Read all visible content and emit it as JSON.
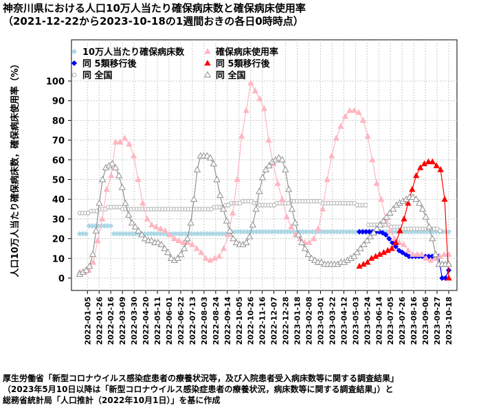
{
  "header": {
    "title": "神奈川県における人口10万人当たり確保病床数と確保病床使用率",
    "subtitle": "（2021-12-22から2023-10-18の1週間おきの各日0時時点）"
  },
  "source": {
    "line1": "厚生労働省「新型コロナウイルス感染症患者の療養状況等，及び入院患者受入病床数等に関する調査結果」",
    "line2": "（2023年5月10日以降は「新型コロナウイルス感染症患者の療養状況，病床数等に関する調査結果」）と",
    "line3": "総務省統計局「人口推計（2022年10月1日）」を基に作成"
  },
  "chart_data": {
    "type": "scatter",
    "ylabel": "人口10万人当たり確保病床数，確保病床使用率（%）",
    "xlabel": "",
    "ylim": [
      0,
      100
    ],
    "yticks": [
      0,
      10,
      20,
      30,
      40,
      50,
      60,
      70,
      80,
      90,
      100
    ],
    "x_tick_labels": [
      "2022-01-05",
      "2022-01-26",
      "2022-02-16",
      "2022-03-09",
      "2022-03-30",
      "2022-04-20",
      "2022-05-11",
      "2022-06-01",
      "2022-06-22",
      "2022-07-13",
      "2022-08-03",
      "2022-08-24",
      "2022-09-14",
      "2022-10-05",
      "2022-10-26",
      "2022-11-16",
      "2022-12-07",
      "2022-12-28",
      "2023-01-18",
      "2023-02-08",
      "2023-03-01",
      "2023-03-22",
      "2023-04-12",
      "2023-05-03",
      "2023-05-24",
      "2023-06-14",
      "2023-07-05",
      "2023-07-26",
      "2023-08-16",
      "2023-09-06",
      "2023-09-27",
      "2023-10-18"
    ],
    "x_start": "2021-12-22",
    "x_end": "2023-10-18",
    "grid": true,
    "legend_position": "top-left",
    "series": [
      {
        "name": "10万人当たり確保病床数",
        "color": "#add8e6",
        "marker": "diamond-filled",
        "line": false,
        "values": [
          22.5,
          22.5,
          22.5,
          26.5,
          26.5,
          26.5,
          26.5,
          26.5,
          26.5,
          26.5,
          26.5,
          22.5,
          22.5,
          22.5,
          22.5,
          22.5,
          22.5,
          22.5,
          22.5,
          22.5,
          22.5,
          22.5,
          22.5,
          22.5,
          22.5,
          22.5,
          22.5,
          22.5,
          22.5,
          22.5,
          22.5,
          22.5,
          22.5,
          22.5,
          22.5,
          22.5,
          22.5,
          22.5,
          22.5,
          22.5,
          22.5,
          22.5,
          22.5,
          22.5,
          22.5,
          22.5,
          22.5,
          22.5,
          22.5,
          23.5,
          23.5,
          23.5,
          23.5,
          23.5,
          23.5,
          23.5,
          23.5,
          23.5,
          23.5,
          23.5,
          23.5,
          23.5,
          23.5,
          23.5,
          23.5,
          23.5,
          23.5,
          23.5,
          23.5,
          23.5,
          23.5,
          23.5,
          23.5,
          23.5,
          23.5,
          23.5,
          23.5,
          23.5,
          23.5,
          23.5,
          23.5,
          23.5,
          23.5,
          23.5,
          23.5,
          23.5,
          23.5,
          23.5,
          23.5,
          23.5,
          23.5,
          23.5,
          23.5,
          23.5,
          23.5,
          23.5,
          23.5,
          23.5,
          23.5,
          23.5,
          23.5,
          23.5,
          23.5,
          23.5,
          23.5,
          23.5,
          23.5,
          23.5,
          23.5,
          23.5,
          23.5,
          23.5,
          23.5,
          23.5,
          23.5,
          23.5,
          23.5,
          23.5,
          23.5,
          23.5
        ]
      },
      {
        "name": "同 5類移行後",
        "color": "#0000ff",
        "marker": "diamond-filled",
        "line": true,
        "values": [
          23.5,
          23.5,
          23.5,
          23.5,
          23.5,
          23.5,
          23.5,
          23,
          22,
          20,
          18,
          16,
          14,
          13,
          12,
          11,
          11,
          11,
          11,
          11,
          11,
          11,
          11,
          11,
          11,
          0,
          0,
          4
        ]
      },
      {
        "name": "同 全国",
        "color": "#b0b0b0",
        "marker": "circle-open",
        "line": false,
        "values": [
          33,
          33,
          33,
          33,
          34,
          34,
          34,
          35,
          35,
          35,
          36,
          36,
          36,
          36,
          36,
          35,
          35,
          35,
          35,
          35,
          35,
          35,
          35,
          35,
          35,
          35,
          35,
          35,
          35,
          35,
          35,
          35,
          35,
          35,
          35,
          35,
          35,
          35,
          35,
          35,
          35,
          35,
          35,
          35,
          35,
          35,
          35,
          36,
          36,
          36,
          36,
          37,
          37,
          38,
          38,
          38,
          38,
          39,
          39,
          39,
          39,
          38,
          38,
          37,
          37,
          37,
          37,
          37,
          37,
          38,
          38,
          38,
          38,
          38,
          39,
          39,
          39,
          39,
          39,
          39,
          39,
          39,
          39,
          39,
          39,
          38,
          38,
          38,
          38,
          38,
          38,
          38,
          38,
          38,
          38,
          38,
          38,
          37,
          37,
          37,
          37,
          27,
          27,
          27,
          27,
          27,
          27,
          27,
          27,
          26,
          26,
          26,
          26,
          25,
          25,
          25,
          25,
          25,
          25,
          25,
          25,
          25,
          25,
          25,
          25,
          25,
          24,
          7,
          7,
          7
        ]
      },
      {
        "name": "確保病床使用率",
        "color": "#ffb6c1",
        "marker": "triangle-filled",
        "line": true,
        "values": [
          3,
          3,
          4,
          8,
          19,
          30,
          45,
          52,
          69,
          69,
          71,
          68,
          62,
          50,
          38,
          30,
          27,
          26,
          25,
          24,
          22,
          20,
          19,
          18,
          18,
          17,
          15,
          13,
          10,
          9,
          10,
          11,
          15,
          22,
          33,
          50,
          72,
          85,
          99,
          95,
          91,
          86,
          70,
          58,
          48,
          40,
          31,
          26,
          22,
          20,
          18,
          18,
          20,
          25,
          35,
          50,
          62,
          71,
          77,
          82,
          85,
          85,
          84,
          80,
          72,
          60,
          48,
          40,
          30,
          24,
          20,
          18,
          17,
          14,
          12,
          12,
          12,
          10,
          9,
          10,
          11,
          12,
          12
        ]
      },
      {
        "name": "同 5類移行後",
        "color": "#ff0000",
        "marker": "triangle-filled",
        "line": true,
        "values": [
          6,
          7,
          8,
          10,
          11,
          12,
          13,
          14,
          15,
          18,
          24,
          30,
          38,
          45,
          52,
          56,
          58,
          59,
          59,
          57,
          55,
          40,
          0
        ]
      },
      {
        "name": "同 全国",
        "color": "#909090",
        "marker": "triangle-open",
        "line": true,
        "values": [
          2,
          3,
          4,
          6,
          12,
          24,
          38,
          50,
          56,
          57,
          58,
          56,
          52,
          46,
          38,
          32,
          28,
          26,
          24,
          22,
          20,
          19,
          19,
          18,
          18,
          17,
          15,
          13,
          10,
          9,
          10,
          12,
          15,
          20,
          28,
          40,
          55,
          62,
          62,
          62,
          61,
          58,
          50,
          42,
          35,
          29,
          24,
          20,
          18,
          17,
          17,
          18,
          21,
          27,
          35,
          44,
          51,
          55,
          57,
          59,
          60,
          61,
          60,
          55,
          45,
          35,
          28,
          22,
          18,
          15,
          12,
          10,
          9,
          8,
          8,
          7,
          7,
          7,
          7,
          7,
          8,
          8,
          9,
          10,
          11,
          13,
          15,
          17,
          19,
          21,
          23,
          25,
          27,
          29,
          31,
          33,
          35,
          37,
          38,
          39,
          40,
          41,
          41,
          40,
          38,
          35,
          31,
          26,
          20,
          12,
          7,
          7,
          7,
          7
        ]
      }
    ]
  }
}
